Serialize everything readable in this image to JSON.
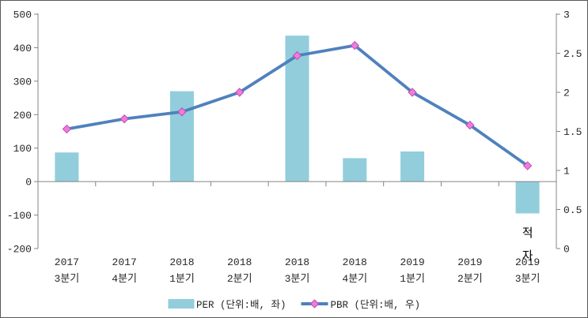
{
  "frame": {
    "background": "#FFFFFF",
    "border_color": "#595959"
  },
  "legend": {
    "items": [
      {
        "label": "PER (단위:배, 좌)",
        "swatch": "bar",
        "color": "#92CDDC"
      },
      {
        "label": "PBR (단위:배, 우)",
        "swatch": "line-diamond",
        "line_color": "#4F81BD",
        "marker_color": "#F17CD6"
      }
    ]
  },
  "chart_data": {
    "type": "combo-bar-line",
    "title": "",
    "grid": false,
    "legend_position": "bottom",
    "axis_color": "#848484",
    "categories": [
      [
        "2017",
        "3분기"
      ],
      [
        "2017",
        "4분기"
      ],
      [
        "2018",
        "1분기"
      ],
      [
        "2018",
        "2분기"
      ],
      [
        "2018",
        "3분기"
      ],
      [
        "2018",
        "4분기"
      ],
      [
        "2019",
        "1분기"
      ],
      [
        "2019",
        "2분기"
      ],
      [
        "2019",
        "3분기"
      ]
    ],
    "series": [
      {
        "name": "PER (단위:배, 좌)",
        "type": "bar",
        "axis": "left",
        "color": "#92CDDC",
        "values": [
          87,
          null,
          270,
          null,
          436,
          70,
          90,
          null,
          -95
        ]
      },
      {
        "name": "PBR (단위:배, 우)",
        "type": "line",
        "axis": "right",
        "color": "#4F81BD",
        "marker": "diamond",
        "marker_color": "#F17CD6",
        "marker_edge_color": "#B94FB9",
        "values": [
          1.53,
          1.66,
          1.75,
          2.0,
          2.47,
          2.6,
          2.0,
          1.58,
          1.06
        ]
      }
    ],
    "left_axis": {
      "min": -200,
      "max": 500,
      "tick_step": 100,
      "tick_labels": [
        "500",
        "400",
        "300",
        "200",
        "100",
        "0",
        "-100",
        "-200"
      ]
    },
    "right_axis": {
      "min": 0,
      "max": 3,
      "tick_step": 0.5,
      "tick_labels": [
        "3",
        "2.5",
        "2",
        "1.5",
        "1",
        "0.5",
        "0"
      ]
    },
    "annotations": [
      {
        "text": "적자",
        "category": "2019 3분기",
        "category_index": 8,
        "orientation": "vertical"
      }
    ]
  }
}
